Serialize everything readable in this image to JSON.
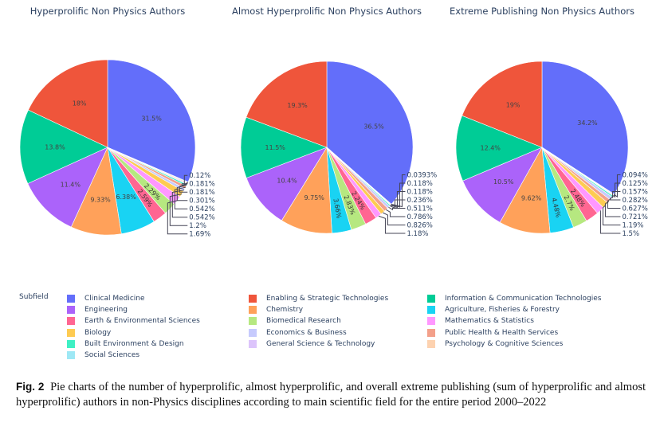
{
  "chart_data": [
    {
      "type": "pie",
      "title": "Hyperprolific Non Physics Authors",
      "slices": [
        {
          "label": "Clinical Medicine",
          "value": 31.5
        },
        {
          "label": "Enabling & Strategic Technologies",
          "value": 18
        },
        {
          "label": "Information & Communication Technologies",
          "value": 13.8
        },
        {
          "label": "Engineering",
          "value": 11.4
        },
        {
          "label": "Chemistry",
          "value": 9.33
        },
        {
          "label": "Agriculture, Fisheries & Forestry",
          "value": 6.38
        },
        {
          "label": "Earth & Environmental Sciences",
          "value": 2.59
        },
        {
          "label": "Biomedical Research",
          "value": 2.29
        },
        {
          "label": "Mathematics & Statistics",
          "value": 1.69
        },
        {
          "label": "Biology",
          "value": 1.2
        },
        {
          "label": "Economics & Business",
          "value": 0.542
        },
        {
          "label": "Public Health & Health Services",
          "value": 0.542
        },
        {
          "label": "Built Environment & Design",
          "value": 0.301
        },
        {
          "label": "General Science & Technology",
          "value": 0.181
        },
        {
          "label": "Psychology & Cognitive Sciences",
          "value": 0.181
        },
        {
          "label": "Social Sciences",
          "value": 0.12
        }
      ]
    },
    {
      "type": "pie",
      "title": "Almost Hyperprolific Non Physics Authors",
      "slices": [
        {
          "label": "Clinical Medicine",
          "value": 36.5
        },
        {
          "label": "Enabling & Strategic Technologies",
          "value": 19.3
        },
        {
          "label": "Information & Communication Technologies",
          "value": 11.5
        },
        {
          "label": "Engineering",
          "value": 10.4
        },
        {
          "label": "Chemistry",
          "value": 9.75
        },
        {
          "label": "Agriculture, Fisheries & Forestry",
          "value": 3.66
        },
        {
          "label": "Biomedical Research",
          "value": 2.83
        },
        {
          "label": "Earth & Environmental Sciences",
          "value": 2.24
        },
        {
          "label": "Mathematics & Statistics",
          "value": 1.18
        },
        {
          "label": "Biology",
          "value": 0.826
        },
        {
          "label": "Public Health & Health Services",
          "value": 0.786
        },
        {
          "label": "Economics & Business",
          "value": 0.511
        },
        {
          "label": "Built Environment & Design",
          "value": 0.236
        },
        {
          "label": "General Science & Technology",
          "value": 0.118
        },
        {
          "label": "Psychology & Cognitive Sciences",
          "value": 0.118
        },
        {
          "label": "Social Sciences",
          "value": 0.0393
        }
      ]
    },
    {
      "type": "pie",
      "title": "Extreme Publishing Non Physics Authors",
      "slices": [
        {
          "label": "Clinical Medicine",
          "value": 34.2
        },
        {
          "label": "Enabling & Strategic Technologies",
          "value": 19
        },
        {
          "label": "Information & Communication Technologies",
          "value": 12.4
        },
        {
          "label": "Engineering",
          "value": 10.5
        },
        {
          "label": "Chemistry",
          "value": 9.62
        },
        {
          "label": "Agriculture, Fisheries & Forestry",
          "value": 4.48
        },
        {
          "label": "Biomedical Research",
          "value": 2.7
        },
        {
          "label": "Earth & Environmental Sciences",
          "value": 2.48
        },
        {
          "label": "Mathematics & Statistics",
          "value": 1.5
        },
        {
          "label": "Biology",
          "value": 1.19
        },
        {
          "label": "Public Health & Health Services",
          "value": 0.721
        },
        {
          "label": "Economics & Business",
          "value": 0.627
        },
        {
          "label": "Built Environment & Design",
          "value": 0.282
        },
        {
          "label": "General Science & Technology",
          "value": 0.157
        },
        {
          "label": "Psychology & Cognitive Sciences",
          "value": 0.125
        },
        {
          "label": "Social Sciences",
          "value": 0.094
        }
      ]
    }
  ],
  "legend": {
    "title": "Subfield",
    "placement": "bottom",
    "items": [
      {
        "label": "Clinical Medicine",
        "color": "#636efa"
      },
      {
        "label": "Enabling & Strategic Technologies",
        "color": "#ef553b"
      },
      {
        "label": "Information & Communication Technologies",
        "color": "#00cc96"
      },
      {
        "label": "Engineering",
        "color": "#ab63fa"
      },
      {
        "label": "Chemistry",
        "color": "#ffa15a"
      },
      {
        "label": "Agriculture, Fisheries & Forestry",
        "color": "#19d3f3"
      },
      {
        "label": "Earth & Environmental Sciences",
        "color": "#ff6692"
      },
      {
        "label": "Biomedical Research",
        "color": "#b6e880"
      },
      {
        "label": "Mathematics & Statistics",
        "color": "#ff97ff"
      },
      {
        "label": "Biology",
        "color": "#fecb52"
      },
      {
        "label": "Economics & Business",
        "color": "#c6cafd"
      },
      {
        "label": "Public Health & Health Services",
        "color": "#f3a08a"
      },
      {
        "label": "Built Environment & Design",
        "color": "#3ef0c4"
      },
      {
        "label": "General Science & Technology",
        "color": "#dcc4fb"
      },
      {
        "label": "Psychology & Cognitive Sciences",
        "color": "#fdd2b0"
      },
      {
        "label": "Social Sciences",
        "color": "#9ee8f5"
      }
    ]
  },
  "caption": {
    "label": "Fig. 2",
    "text": "Pie charts of the number of hyperprolific, almost hyperprolific, and overall extreme publishing (sum of hyperprolific and almost hyperprolific) authors in non-Physics disciplines according to main scientific field for the entire period 2000–2022"
  }
}
